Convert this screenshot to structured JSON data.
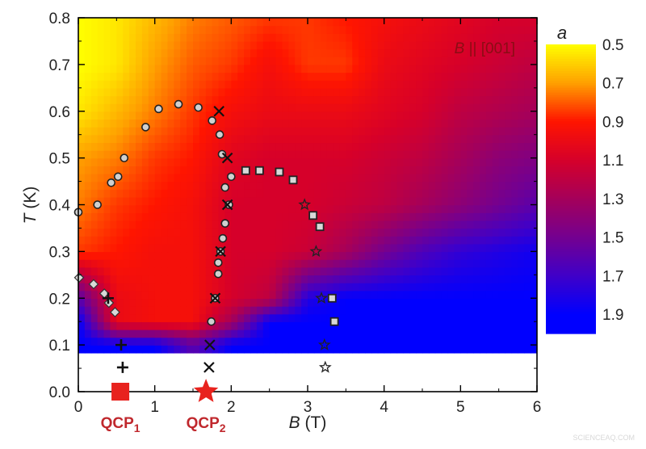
{
  "chart_data": {
    "type": "heatmap",
    "xlabel": {
      "var": "B",
      "unit": " (T)"
    },
    "ylabel": {
      "var": "T",
      "unit": " (K)"
    },
    "xlim": [
      0,
      6
    ],
    "ylim": [
      0,
      0.8
    ],
    "x_ticks": [
      "0",
      "1",
      "2",
      "3",
      "4",
      "5",
      "6"
    ],
    "y_ticks": [
      "0.0",
      "0.1",
      "0.2",
      "0.3",
      "0.4",
      "0.5",
      "0.6",
      "0.7",
      "0.8"
    ],
    "annotation": {
      "var": "B",
      "text": " || [001]"
    },
    "colorbar": {
      "title": "a",
      "ticks": [
        "0.5",
        "0.7",
        "0.9",
        "1.1",
        "1.3",
        "1.5",
        "1.7",
        "1.9"
      ],
      "range": [
        0.5,
        2.0
      ],
      "colors": [
        [
          0.5,
          "#ffff00"
        ],
        [
          0.7,
          "#ffa000"
        ],
        [
          0.9,
          "#ff1500"
        ],
        [
          1.1,
          "#d6002a"
        ],
        [
          1.3,
          "#a5005a"
        ],
        [
          1.5,
          "#740090"
        ],
        [
          1.7,
          "#4000c8"
        ],
        [
          1.9,
          "#0000ff"
        ],
        [
          2.0,
          "#0000ff"
        ]
      ]
    },
    "heatmap": {
      "B": [
        0,
        0.5,
        1,
        1.5,
        2,
        2.5,
        3,
        3.5,
        4,
        4.5,
        5,
        5.5,
        6
      ],
      "T": [
        0.1,
        0.15,
        0.2,
        0.3,
        0.4,
        0.5,
        0.6,
        0.7,
        0.8
      ],
      "T_min": 0.083,
      "a": [
        [
          1.9,
          1.9,
          1.9,
          1.6,
          1.9,
          1.9,
          1.9,
          1.9,
          1.9,
          1.9,
          1.9,
          1.9,
          1.9
        ],
        [
          1.9,
          1.0,
          0.95,
          0.95,
          1.3,
          1.9,
          1.9,
          1.9,
          1.9,
          1.9,
          1.9,
          1.9,
          1.9
        ],
        [
          1.6,
          1.0,
          0.95,
          0.95,
          1.1,
          1.2,
          1.8,
          1.9,
          1.9,
          1.9,
          1.9,
          1.9,
          1.9
        ],
        [
          0.85,
          0.9,
          0.95,
          0.95,
          1.1,
          1.1,
          1.15,
          1.3,
          1.5,
          1.65,
          1.75,
          1.8,
          1.85
        ],
        [
          0.75,
          0.85,
          0.9,
          0.95,
          1.1,
          1.1,
          1.1,
          1.15,
          1.2,
          1.3,
          1.4,
          1.5,
          1.6
        ],
        [
          0.7,
          0.75,
          0.85,
          0.9,
          1.05,
          1.1,
          1.1,
          1.1,
          1.15,
          1.2,
          1.3,
          1.4,
          1.45
        ],
        [
          0.55,
          0.65,
          0.75,
          0.85,
          0.95,
          1.0,
          1.0,
          1.0,
          1.05,
          1.1,
          1.2,
          1.25,
          1.3
        ],
        [
          0.5,
          0.55,
          0.7,
          0.8,
          0.85,
          0.95,
          0.85,
          0.85,
          1.0,
          1.05,
          1.1,
          1.15,
          1.2
        ],
        [
          0.5,
          0.55,
          0.65,
          0.75,
          0.8,
          0.85,
          0.85,
          0.9,
          0.95,
          1.0,
          1.05,
          1.1,
          1.1
        ]
      ]
    },
    "markers": {
      "circle": [
        [
          0,
          0.384
        ],
        [
          0.25,
          0.4
        ],
        [
          0.43,
          0.447
        ],
        [
          0.52,
          0.46
        ],
        [
          0.6,
          0.5
        ],
        [
          0.88,
          0.566
        ],
        [
          1.05,
          0.605
        ],
        [
          1.31,
          0.615
        ],
        [
          1.57,
          0.608
        ],
        [
          1.75,
          0.58
        ],
        [
          1.85,
          0.55
        ],
        [
          1.88,
          0.508
        ],
        [
          2.0,
          0.46
        ],
        [
          1.92,
          0.437
        ],
        [
          1.97,
          0.4
        ],
        [
          1.92,
          0.36
        ],
        [
          1.89,
          0.328
        ],
        [
          1.86,
          0.3
        ],
        [
          1.83,
          0.276
        ],
        [
          1.83,
          0.252
        ],
        [
          1.79,
          0.2
        ],
        [
          1.74,
          0.15
        ]
      ],
      "square": [
        [
          2.19,
          0.473
        ],
        [
          2.37,
          0.473
        ],
        [
          2.63,
          0.47
        ],
        [
          2.81,
          0.453
        ],
        [
          3.07,
          0.377
        ],
        [
          3.16,
          0.353
        ],
        [
          3.32,
          0.2
        ],
        [
          3.35,
          0.15
        ]
      ],
      "star": [
        [
          2.96,
          0.4
        ],
        [
          3.11,
          0.3
        ],
        [
          3.18,
          0.2
        ],
        [
          3.22,
          0.1
        ],
        [
          3.23,
          0.052
        ]
      ],
      "diamond": [
        [
          0.01,
          0.244
        ],
        [
          0.2,
          0.23
        ],
        [
          0.34,
          0.21
        ],
        [
          0.4,
          0.19
        ],
        [
          0.48,
          0.17
        ]
      ],
      "cross_x": [
        [
          1.84,
          0.6
        ],
        [
          1.95,
          0.5
        ],
        [
          1.95,
          0.4
        ],
        [
          1.86,
          0.3
        ],
        [
          1.79,
          0.2
        ],
        [
          1.72,
          0.1
        ],
        [
          1.71,
          0.052
        ]
      ],
      "plus": [
        [
          0.39,
          0.2
        ],
        [
          0.56,
          0.1
        ],
        [
          0.58,
          0.052
        ]
      ]
    },
    "qcp": [
      {
        "label": "QCP",
        "sub": "1",
        "B": 0.55,
        "T": 0,
        "shape": "square"
      },
      {
        "label": "QCP",
        "sub": "2",
        "B": 1.67,
        "T": 0,
        "shape": "star"
      }
    ],
    "qcp_color": "#e8231e",
    "qcp_label_color": "#c0282d"
  },
  "watermark": "SCIENCEAQ.COM"
}
